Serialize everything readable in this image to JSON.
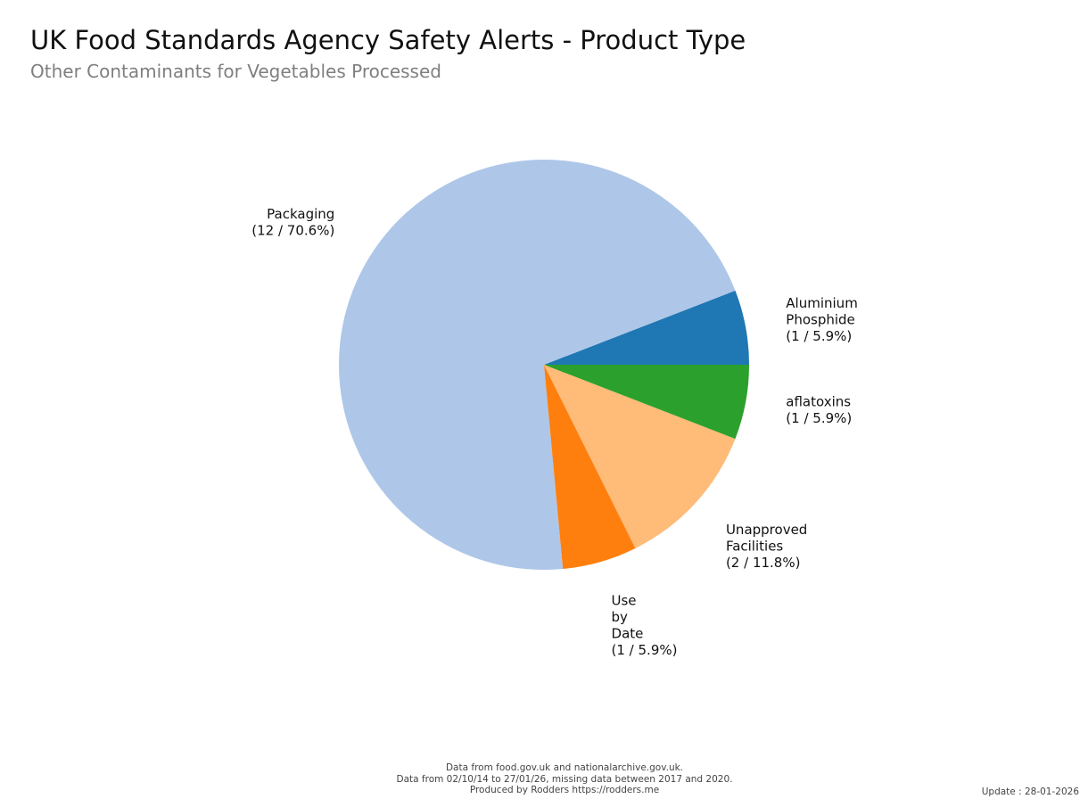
{
  "header": {
    "title": "UK Food Standards Agency Safety Alerts - Product Type",
    "subtitle": "Other Contaminants for Vegetables Processed"
  },
  "chart_data": {
    "type": "pie",
    "title": "UK Food Standards Agency Safety Alerts - Product Type",
    "subtitle": "Other Contaminants for Vegetables Processed",
    "slices": [
      {
        "label": "Aluminium Phosphide",
        "value": 1,
        "percent": 5.9,
        "color": "#1f77b4",
        "label_lines": [
          "Aluminium",
          "Phosphide",
          "(1 / 5.9%)"
        ]
      },
      {
        "label": "Packaging",
        "value": 12,
        "percent": 70.6,
        "color": "#aec7e8",
        "label_lines": [
          "Packaging",
          "(12 / 70.6%)"
        ]
      },
      {
        "label": "Use by Date",
        "value": 1,
        "percent": 5.9,
        "color": "#ff7f0e",
        "label_lines": [
          "Use",
          "by",
          "Date",
          "(1 / 5.9%)"
        ]
      },
      {
        "label": "Unapproved Facilities",
        "value": 2,
        "percent": 11.8,
        "color": "#ffbb78",
        "label_lines": [
          "Unapproved",
          "Facilities",
          "(2 / 11.8%)"
        ]
      },
      {
        "label": "aflatoxins",
        "value": 1,
        "percent": 5.9,
        "color": "#2ca02c",
        "label_lines": [
          "aflatoxins",
          "(1 / 5.9%)"
        ]
      }
    ],
    "start_angle_deg": 0,
    "direction": "counterclockwise",
    "legend": "none"
  },
  "footer": {
    "line1": "Data from food.gov.uk and nationalarchive.gov.uk.",
    "line2": "Data from 02/10/14 to 27/01/26, missing data between 2017 and 2020.",
    "line3": "Produced by Rodders https://rodders.me",
    "update": "Update : 28-01-2026"
  }
}
